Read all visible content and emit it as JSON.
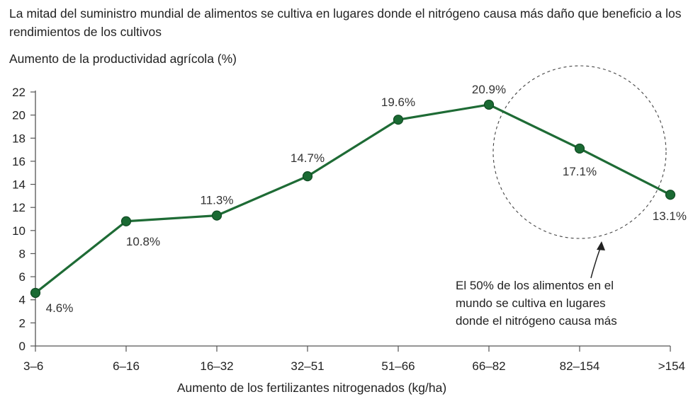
{
  "chart_data": {
    "type": "line",
    "title": "La mitad del suministro mundial de alimentos se cultiva en lugares donde el nitrógeno causa más daño que beneficio a los rendimientos de los cultivos",
    "ylabel": "Aumento de la productividad agrícola (%)",
    "xlabel": "Aumento de los fertilizantes nitrogenados (kg/ha)",
    "categories": [
      "3–6",
      "6–16",
      "16–32",
      "32–51",
      "51–66",
      "66–82",
      "82–154",
      ">154"
    ],
    "values": [
      4.6,
      10.8,
      11.3,
      14.7,
      19.6,
      20.9,
      17.1,
      13.1
    ],
    "data_labels": [
      "4.6%",
      "10.8%",
      "11.3%",
      "14.7%",
      "19.6%",
      "20.9%",
      "17.1%",
      "13.1%"
    ],
    "ylim": [
      0,
      22
    ],
    "yticks": [
      0,
      2,
      4,
      6,
      8,
      10,
      12,
      14,
      16,
      18,
      20,
      22
    ],
    "grid": false,
    "annotation": {
      "lines": [
        "El 50% de los alimentos en el",
        "mundo se cultiva en lugares",
        "donde el nitrógeno causa más"
      ]
    },
    "colors": {
      "line": "#1e6b35",
      "marker": "#1a6a33",
      "marker_edge": "#0f4a22"
    }
  }
}
